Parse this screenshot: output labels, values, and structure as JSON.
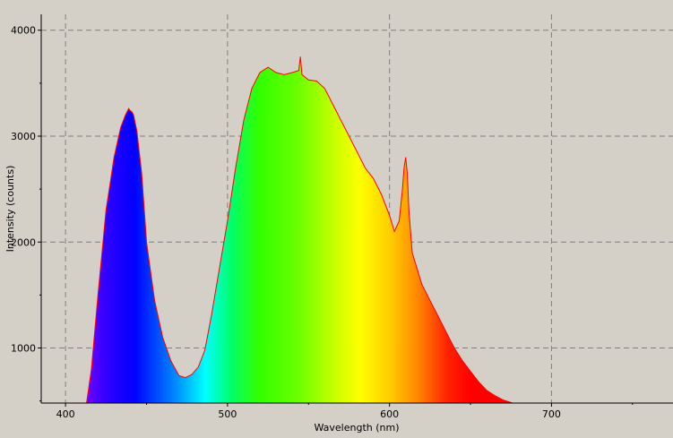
{
  "chart_data": {
    "type": "area",
    "title": "",
    "xlabel": "Wavelength (nm)",
    "ylabel": "Intensity (counts)",
    "xlim": [
      385,
      775
    ],
    "ylim": [
      480,
      4150
    ],
    "x_ticks": [
      400,
      500,
      600,
      700
    ],
    "y_ticks": [
      1000,
      2000,
      3000,
      4000
    ],
    "grid": true,
    "fill": "visible-spectrum-gradient",
    "line_color": "#ff0000",
    "background": "#d4d0c8",
    "series": [
      {
        "x": [
          413,
          416,
          420,
          425,
          430,
          434,
          437,
          439,
          440,
          441,
          442,
          444,
          447,
          450,
          455,
          460,
          465,
          470,
          474,
          478,
          482,
          486,
          490,
          495,
          500,
          505,
          510,
          515,
          520,
          525,
          530,
          535,
          540,
          544,
          545,
          546,
          550,
          555,
          560,
          565,
          570,
          575,
          580,
          585,
          590,
          595,
          600,
          603,
          606,
          608,
          609,
          610,
          611,
          612,
          614,
          617,
          620,
          625,
          630,
          635,
          640,
          645,
          650,
          655,
          660,
          665,
          670,
          676
        ],
        "y": [
          480,
          800,
          1500,
          2300,
          2800,
          3080,
          3200,
          3260,
          3240,
          3230,
          3200,
          3050,
          2650,
          2000,
          1450,
          1100,
          880,
          740,
          720,
          750,
          820,
          980,
          1300,
          1750,
          2200,
          2700,
          3150,
          3450,
          3600,
          3650,
          3600,
          3580,
          3600,
          3620,
          3750,
          3580,
          3530,
          3520,
          3450,
          3300,
          3150,
          3000,
          2850,
          2700,
          2600,
          2450,
          2250,
          2100,
          2200,
          2500,
          2700,
          2800,
          2650,
          2300,
          1900,
          1750,
          1600,
          1450,
          1300,
          1150,
          1000,
          880,
          780,
          680,
          600,
          550,
          510,
          480
        ]
      }
    ]
  }
}
